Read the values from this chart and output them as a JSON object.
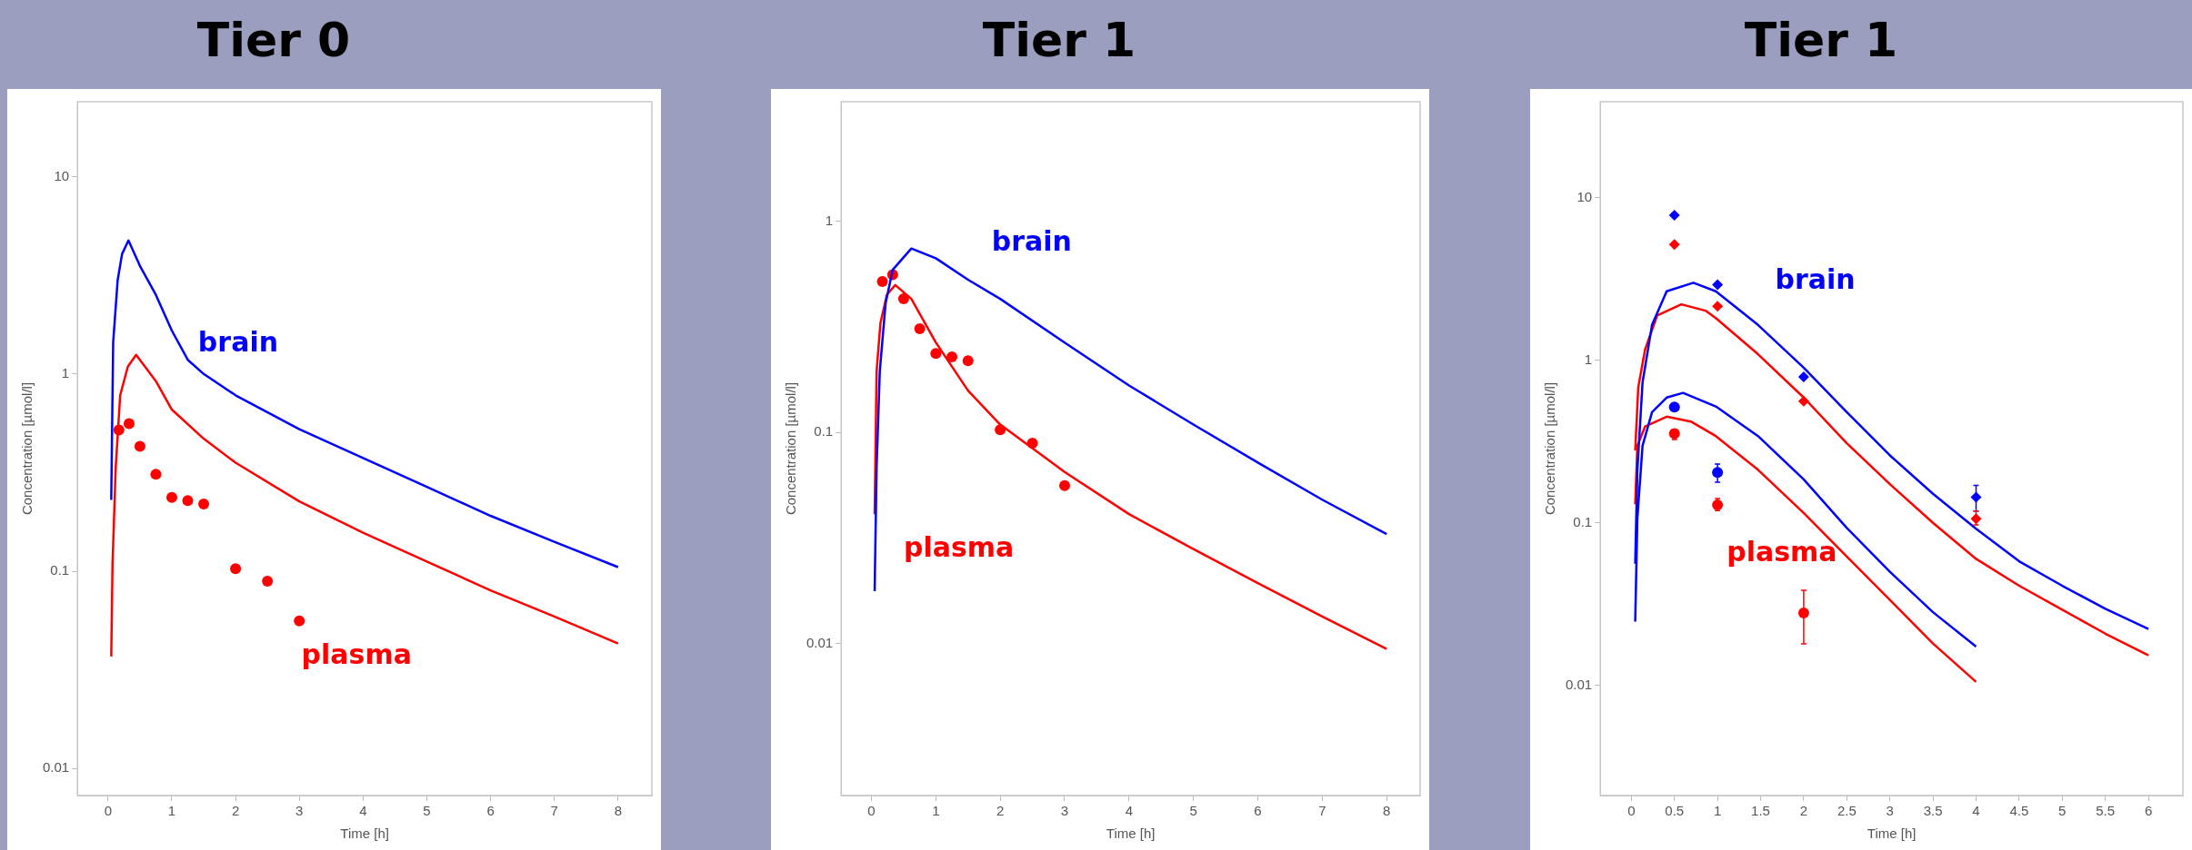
{
  "chart_data": [
    {
      "type": "line",
      "title": "Tier 0",
      "xlabel": "Time [h]",
      "ylabel": "Concentration [µmol/l]",
      "log": "y",
      "xlim": [
        -0.48,
        8.53
      ],
      "xticks": [
        0,
        1,
        2,
        3,
        4,
        5,
        6,
        7,
        8
      ],
      "ylim": [
        0.0073,
        24
      ],
      "yticks": [
        0.01,
        0.1,
        1,
        10
      ],
      "series": [
        {
          "name": "brain",
          "type": "line",
          "marker": "none",
          "color": "#0000ff",
          "x": [
            0.05,
            0.08,
            0.15,
            0.22,
            0.32,
            0.5,
            0.75,
            1,
            1.25,
            1.5,
            2,
            3,
            4,
            5,
            6,
            7,
            8
          ],
          "values": [
            0.23,
            1.44,
            2.98,
            4.06,
            4.75,
            3.53,
            2.52,
            1.66,
            1.18,
            1.0,
            0.78,
            0.525,
            0.375,
            0.268,
            0.191,
            0.141,
            0.105
          ]
        },
        {
          "name": "plasma",
          "type": "line",
          "marker": "none",
          "color": "#ff0000",
          "x": [
            0.05,
            0.07,
            0.12,
            0.19,
            0.31,
            0.44,
            0.75,
            1,
            1.5,
            2,
            3,
            4,
            5,
            6,
            7,
            8
          ],
          "values": [
            0.037,
            0.109,
            0.336,
            0.78,
            1.09,
            1.25,
            0.92,
            0.66,
            0.47,
            0.355,
            0.226,
            0.157,
            0.112,
            0.08,
            0.059,
            0.043
          ]
        },
        {
          "type": "scatter",
          "marker": "circle",
          "color": "#ff0000",
          "x": [
            0.17,
            0.33,
            0.5,
            0.75,
            1,
            1.25,
            1.5,
            2,
            2.5,
            3
          ],
          "values": [
            0.52,
            0.56,
            0.43,
            0.31,
            0.237,
            0.228,
            0.219,
            0.103,
            0.089,
            0.056
          ]
        }
      ]
    },
    {
      "type": "line",
      "title": "Tier 1",
      "xlabel": "Time [h]",
      "ylabel": "Concentration [µmol/l]",
      "log": "y",
      "xlim": [
        -0.47,
        8.52
      ],
      "xticks": [
        0,
        1,
        2,
        3,
        4,
        5,
        6,
        7,
        8
      ],
      "ylim": [
        0.0019,
        3.7
      ],
      "yticks": [
        0.01,
        0.1,
        1
      ],
      "series": [
        {
          "name": "brain",
          "type": "line",
          "marker": "none",
          "color": "#0000ff",
          "x": [
            0.05,
            0.08,
            0.13,
            0.22,
            0.33,
            0.62,
            1,
            1.5,
            2,
            3,
            4,
            5,
            6,
            7,
            8
          ],
          "values": [
            0.0177,
            0.068,
            0.195,
            0.41,
            0.59,
            0.745,
            0.67,
            0.53,
            0.43,
            0.267,
            0.167,
            0.109,
            0.072,
            0.048,
            0.033
          ]
        },
        {
          "name": "plasma",
          "type": "line",
          "marker": "none",
          "color": "#ff0000",
          "x": [
            0.05,
            0.08,
            0.14,
            0.24,
            0.37,
            0.62,
            1,
            1.5,
            2,
            3,
            4,
            5,
            6,
            7,
            8
          ],
          "values": [
            0.041,
            0.195,
            0.33,
            0.45,
            0.5,
            0.43,
            0.267,
            0.158,
            0.109,
            0.065,
            0.041,
            0.028,
            0.0193,
            0.0134,
            0.0094
          ]
        },
        {
          "type": "scatter",
          "marker": "circle",
          "color": "#ff0000",
          "x": [
            0.17,
            0.33,
            0.5,
            0.75,
            1,
            1.25,
            1.5,
            2,
            2.5,
            3
          ],
          "values": [
            0.52,
            0.56,
            0.43,
            0.31,
            0.237,
            0.228,
            0.219,
            0.103,
            0.089,
            0.056
          ]
        }
      ]
    },
    {
      "type": "line",
      "title": "Tier 1",
      "xlabel": "Time [h]",
      "ylabel": "Concentration [µmol/l]",
      "log": "y",
      "xlim": [
        -0.36,
        6.4
      ],
      "xticks": [
        0,
        0.5,
        1,
        1.5,
        2,
        2.5,
        3,
        3.5,
        4,
        4.5,
        5,
        5.5,
        6
      ],
      "ylim": [
        0.0021,
        39
      ],
      "yticks": [
        0.01,
        0.1,
        1,
        10
      ],
      "series": [
        {
          "name": "brain",
          "type": "line",
          "marker": "none",
          "color": "#0000ff",
          "x": [
            0.045,
            0.07,
            0.13,
            0.24,
            0.41,
            0.72,
            0.98,
            1.47,
            2,
            2.5,
            3,
            3.5,
            4,
            4.5,
            5,
            5.5,
            6
          ],
          "values": [
            0.056,
            0.212,
            0.73,
            1.65,
            2.66,
            3.0,
            2.66,
            1.65,
            0.9,
            0.48,
            0.26,
            0.151,
            0.092,
            0.058,
            0.041,
            0.0296,
            0.0222
          ]
        },
        {
          "name": "plasma",
          "type": "line",
          "marker": "none",
          "color": "#ff0000",
          "x": [
            0.045,
            0.08,
            0.16,
            0.3,
            0.58,
            0.86,
            0.98,
            1.47,
            2,
            2.5,
            3,
            3.5,
            4,
            4.5,
            5,
            5.5,
            6
          ],
          "values": [
            0.279,
            0.68,
            1.17,
            1.89,
            2.21,
            2.02,
            1.82,
            1.09,
            0.59,
            0.309,
            0.173,
            0.1,
            0.06,
            0.041,
            0.0292,
            0.0208,
            0.0153
          ]
        },
        {
          "type": "line",
          "marker": "none",
          "color": "#0000ff",
          "x": [
            0.045,
            0.07,
            0.13,
            0.24,
            0.41,
            0.6,
            0.98,
            1.47,
            2,
            2.5,
            3,
            3.5,
            4
          ],
          "values": [
            0.0247,
            0.107,
            0.298,
            0.48,
            0.59,
            0.63,
            0.52,
            0.342,
            0.185,
            0.093,
            0.05,
            0.0282,
            0.0173
          ]
        },
        {
          "type": "line",
          "marker": "none",
          "color": "#ff0000",
          "x": [
            0.045,
            0.07,
            0.16,
            0.41,
            0.69,
            0.98,
            1.47,
            2,
            2.5,
            3,
            3.5,
            4
          ],
          "values": [
            0.13,
            0.298,
            0.392,
            0.45,
            0.42,
            0.342,
            0.212,
            0.115,
            0.062,
            0.0335,
            0.0181,
            0.0105
          ]
        },
        {
          "type": "scatter",
          "marker": "diamond",
          "color": "#0000ff",
          "x": [
            0.5,
            1,
            2,
            4
          ],
          "values": [
            7.8,
            2.92,
            0.79,
            0.144
          ],
          "errors": [
            null,
            null,
            null,
            [
              0.118,
              0.17
            ]
          ]
        },
        {
          "type": "scatter",
          "marker": "diamond",
          "color": "#ff0000",
          "x": [
            0.5,
            1,
            2,
            4
          ],
          "values": [
            5.15,
            2.15,
            0.56,
            0.106
          ],
          "errors": [
            null,
            null,
            null,
            [
              0.097,
              0.118
            ]
          ]
        },
        {
          "type": "scatter",
          "marker": "circle",
          "color": "#0000ff",
          "x": [
            0.5,
            1
          ],
          "values": [
            0.515,
            0.204
          ],
          "errors": [
            null,
            [
              0.178,
              0.23
            ]
          ]
        },
        {
          "type": "scatter",
          "marker": "circle",
          "color": "#ff0000",
          "x": [
            0.5,
            1,
            2
          ],
          "values": [
            0.354,
            0.129,
            0.0279
          ],
          "errors": [
            [
              0.326,
              0.376
            ],
            [
              0.119,
              0.141
            ],
            [
              0.018,
              0.0385
            ]
          ]
        }
      ]
    }
  ]
}
